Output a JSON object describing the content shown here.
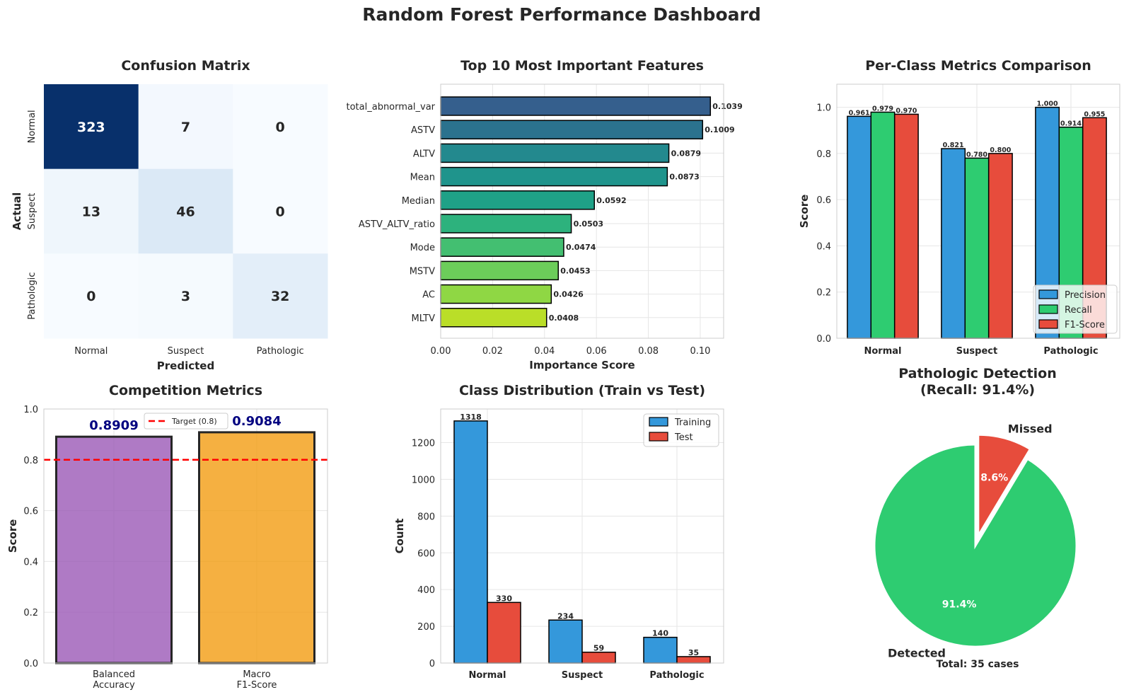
{
  "figure": {
    "title": "Random Forest Performance Dashboard"
  },
  "chart_data": [
    {
      "type": "heatmap",
      "title": "Confusion Matrix",
      "xlabel": "Predicted",
      "ylabel": "Actual",
      "x_categories": [
        "Normal",
        "Suspect",
        "Pathologic"
      ],
      "y_categories": [
        "Normal",
        "Suspect",
        "Pathologic"
      ],
      "values": [
        [
          323,
          7,
          0
        ],
        [
          13,
          46,
          0
        ],
        [
          0,
          3,
          32
        ]
      ],
      "colormap": "Blues",
      "colorbar": false
    },
    {
      "type": "bar",
      "orientation": "horizontal",
      "title": "Top 10 Most Important Features",
      "xlabel": "Importance Score",
      "ylabel": "",
      "categories": [
        "total_abnormal_var",
        "ASTV",
        "ALTV",
        "Mean",
        "Median",
        "ASTV_ALTV_ratio",
        "Mode",
        "MSTV",
        "AC",
        "MLTV"
      ],
      "values": [
        0.1039,
        0.1009,
        0.0879,
        0.0873,
        0.0592,
        0.0503,
        0.0474,
        0.0453,
        0.0426,
        0.0408
      ],
      "data_labels": [
        "0.1039",
        "0.1009",
        "0.0879",
        "0.0873",
        "0.0592",
        "0.0503",
        "0.0474",
        "0.0453",
        "0.0426",
        "0.0408"
      ],
      "xlim": [
        0,
        0.109
      ],
      "xticks": [
        "0.00",
        "0.02",
        "0.04",
        "0.06",
        "0.08",
        "0.10"
      ],
      "colors": [
        "#355f8d",
        "#2b728e",
        "#23898e",
        "#1f948c",
        "#1fa187",
        "#2db27d",
        "#43bf71",
        "#6ccd5a",
        "#8fd744",
        "#bade28"
      ],
      "grid": true
    },
    {
      "type": "bar",
      "title": "Per-Class Metrics Comparison",
      "xlabel": "",
      "ylabel": "Score",
      "categories": [
        "Normal",
        "Suspect",
        "Pathologic"
      ],
      "series": [
        {
          "name": "Precision",
          "values": [
            0.961,
            0.821,
            1.0
          ],
          "labels": [
            "0.961",
            "0.821",
            "1.000"
          ],
          "color": "#3498db"
        },
        {
          "name": "Recall",
          "values": [
            0.979,
            0.78,
            0.914
          ],
          "labels": [
            "0.979",
            "0.780",
            "0.914"
          ],
          "color": "#2ecc71"
        },
        {
          "name": "F1-Score",
          "values": [
            0.97,
            0.8,
            0.955
          ],
          "labels": [
            "0.970",
            "0.800",
            "0.955"
          ],
          "color": "#e74c3c"
        }
      ],
      "ylim": [
        0,
        1.1
      ],
      "yticks": [
        "0.0",
        "0.2",
        "0.4",
        "0.6",
        "0.8",
        "1.0"
      ],
      "legend": "lower-right",
      "grid": true
    },
    {
      "type": "bar",
      "title": "Competition Metrics",
      "xlabel": "",
      "ylabel": "Score",
      "categories": [
        [
          "Balanced",
          "Accuracy"
        ],
        [
          "Macro",
          "F1-Score"
        ]
      ],
      "values": [
        0.8909,
        0.9084
      ],
      "data_labels": [
        "0.8909",
        "0.9084"
      ],
      "colors": [
        "#9b59b6",
        "#f39c12"
      ],
      "reference_line": {
        "value": 0.8,
        "label": "Target (0.8)",
        "color": "#ff0000"
      },
      "ylim": [
        0,
        1.0
      ],
      "yticks": [
        "0.0",
        "0.2",
        "0.4",
        "0.6",
        "0.8",
        "1.0"
      ],
      "legend": "top-center",
      "grid": true
    },
    {
      "type": "bar",
      "title": "Class Distribution (Train vs Test)",
      "xlabel": "",
      "ylabel": "Count",
      "categories": [
        "Normal",
        "Suspect",
        "Pathologic"
      ],
      "series": [
        {
          "name": "Training",
          "values": [
            1318,
            234,
            140
          ],
          "color": "#3498db"
        },
        {
          "name": "Test",
          "values": [
            330,
            59,
            35
          ],
          "color": "#e74c3c"
        }
      ],
      "ylim": [
        0,
        1383
      ],
      "yticks": [
        "0",
        "200",
        "400",
        "600",
        "800",
        "1000",
        "1200"
      ],
      "legend": "top-right",
      "grid": true
    },
    {
      "type": "pie",
      "title": [
        "Pathologic Detection",
        "(Recall: 91.4%)"
      ],
      "labels": [
        "Detected",
        "Missed"
      ],
      "values": [
        91.4,
        8.6
      ],
      "pct_labels": [
        "91.4%",
        "8.6%"
      ],
      "colors": [
        "#2ecc71",
        "#e74c3c"
      ],
      "explode": [
        0,
        0.1
      ],
      "annotation": "Total: 35 cases"
    }
  ]
}
